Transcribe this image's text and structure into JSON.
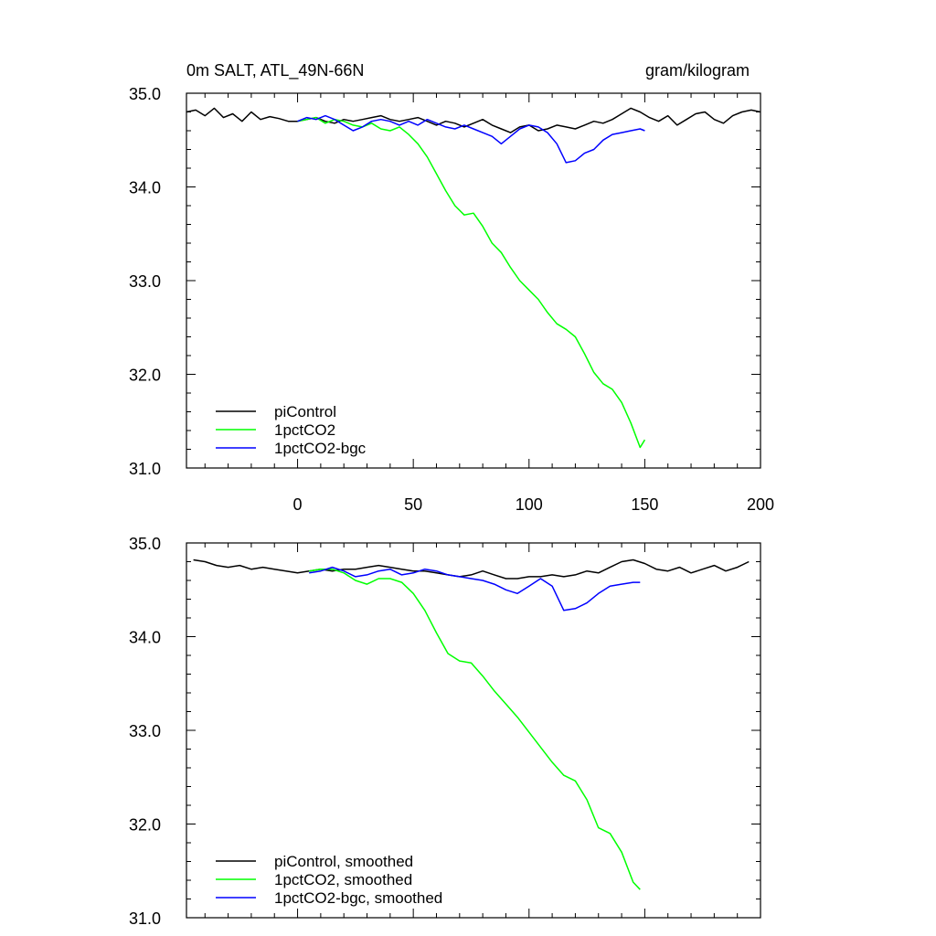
{
  "chart_data": [
    {
      "type": "line",
      "title_left": "0m SALT, ATL_49N-66N",
      "title_right": "gram/kilogram",
      "xlim": [
        -48,
        200
      ],
      "ylim": [
        31.0,
        35.0
      ],
      "x_ticks": [
        0,
        50,
        100,
        150,
        200
      ],
      "y_ticks": [
        "31.0",
        "32.0",
        "33.0",
        "34.0",
        "35.0"
      ],
      "y_tick_values": [
        31.0,
        32.0,
        33.0,
        34.0,
        35.0
      ],
      "x_tick_labels_visible": true,
      "grid": false,
      "legend_position": "bottom-left",
      "series": [
        {
          "name": "piControl",
          "color": "#000000",
          "x": [
            -48,
            -44,
            -40,
            -36,
            -32,
            -28,
            -24,
            -20,
            -16,
            -12,
            -8,
            -4,
            0,
            4,
            8,
            12,
            16,
            20,
            24,
            28,
            32,
            36,
            40,
            44,
            48,
            52,
            56,
            60,
            64,
            68,
            72,
            76,
            80,
            84,
            88,
            92,
            96,
            100,
            104,
            108,
            112,
            116,
            120,
            124,
            128,
            132,
            136,
            140,
            144,
            148,
            152,
            156,
            160,
            164,
            168,
            172,
            176,
            180,
            184,
            188,
            192,
            196,
            200
          ],
          "values": [
            34.8,
            34.82,
            34.76,
            34.84,
            34.74,
            34.78,
            34.7,
            34.8,
            34.72,
            34.75,
            34.73,
            34.7,
            34.7,
            34.72,
            34.74,
            34.7,
            34.68,
            34.72,
            34.7,
            34.72,
            34.74,
            34.76,
            34.72,
            34.7,
            34.72,
            34.74,
            34.7,
            34.66,
            34.7,
            34.68,
            34.64,
            34.68,
            34.72,
            34.66,
            34.62,
            34.58,
            34.64,
            34.66,
            34.6,
            34.62,
            34.66,
            34.64,
            34.62,
            34.66,
            34.7,
            34.68,
            34.72,
            34.78,
            34.84,
            34.8,
            34.74,
            34.7,
            34.76,
            34.66,
            34.72,
            34.78,
            34.8,
            34.72,
            34.68,
            34.76,
            34.8,
            34.82,
            34.8
          ]
        },
        {
          "name": "1pctCO2",
          "color": "#00ff00",
          "x": [
            0,
            4,
            8,
            12,
            16,
            20,
            24,
            28,
            32,
            36,
            40,
            44,
            48,
            52,
            56,
            60,
            64,
            68,
            72,
            76,
            80,
            84,
            88,
            92,
            96,
            100,
            104,
            108,
            112,
            116,
            120,
            124,
            128,
            132,
            136,
            140,
            144,
            148,
            150
          ],
          "values": [
            34.7,
            34.72,
            34.74,
            34.68,
            34.72,
            34.7,
            34.66,
            34.64,
            34.68,
            34.62,
            34.6,
            34.64,
            34.56,
            34.46,
            34.32,
            34.14,
            33.96,
            33.8,
            33.7,
            33.72,
            33.58,
            33.4,
            33.3,
            33.14,
            33.0,
            32.9,
            32.8,
            32.66,
            32.54,
            32.48,
            32.4,
            32.22,
            32.02,
            31.9,
            31.84,
            31.7,
            31.48,
            31.22,
            31.3
          ]
        },
        {
          "name": "1pctCO2-bgc",
          "color": "#0000ff",
          "x": [
            0,
            4,
            8,
            12,
            16,
            20,
            24,
            28,
            32,
            36,
            40,
            44,
            48,
            52,
            56,
            60,
            64,
            68,
            72,
            76,
            80,
            84,
            88,
            92,
            96,
            100,
            104,
            108,
            112,
            116,
            120,
            124,
            128,
            132,
            136,
            140,
            144,
            148,
            150
          ],
          "values": [
            34.7,
            34.74,
            34.72,
            34.76,
            34.72,
            34.66,
            34.6,
            34.64,
            34.7,
            34.72,
            34.7,
            34.66,
            34.7,
            34.66,
            34.72,
            34.68,
            34.64,
            34.62,
            34.66,
            34.62,
            34.58,
            34.54,
            34.46,
            34.54,
            34.62,
            34.66,
            34.64,
            34.58,
            34.46,
            34.26,
            34.28,
            34.36,
            34.4,
            34.5,
            34.56,
            34.58,
            34.6,
            34.62,
            34.6
          ]
        }
      ]
    },
    {
      "type": "line",
      "xlim": [
        -48,
        200
      ],
      "ylim": [
        31.0,
        35.0
      ],
      "x_ticks": [
        0,
        50,
        100,
        150,
        200
      ],
      "y_ticks": [
        "31.0",
        "32.0",
        "33.0",
        "34.0",
        "35.0"
      ],
      "y_tick_values": [
        31.0,
        32.0,
        33.0,
        34.0,
        35.0
      ],
      "x_tick_labels_visible": false,
      "grid": false,
      "legend_position": "bottom-left",
      "series": [
        {
          "name": "piControl, smoothed",
          "color": "#000000",
          "x": [
            -45,
            -40,
            -35,
            -30,
            -25,
            -20,
            -15,
            -10,
            -5,
            0,
            5,
            10,
            15,
            20,
            25,
            30,
            35,
            40,
            45,
            50,
            55,
            60,
            65,
            70,
            75,
            80,
            85,
            90,
            95,
            100,
            105,
            110,
            115,
            120,
            125,
            130,
            135,
            140,
            145,
            150,
            155,
            160,
            165,
            170,
            175,
            180,
            185,
            190,
            195
          ],
          "values": [
            34.82,
            34.8,
            34.76,
            34.74,
            34.76,
            34.72,
            34.74,
            34.72,
            34.7,
            34.68,
            34.7,
            34.72,
            34.7,
            34.72,
            34.72,
            34.74,
            34.76,
            34.74,
            34.72,
            34.7,
            34.7,
            34.68,
            34.66,
            34.64,
            34.66,
            34.7,
            34.66,
            34.62,
            34.62,
            34.64,
            34.64,
            34.66,
            34.64,
            34.66,
            34.7,
            34.68,
            34.74,
            34.8,
            34.82,
            34.78,
            34.72,
            34.7,
            34.74,
            34.68,
            34.72,
            34.76,
            34.7,
            34.74,
            34.8
          ]
        },
        {
          "name": "1pctCO2, smoothed",
          "color": "#00ff00",
          "x": [
            5,
            10,
            15,
            20,
            25,
            30,
            35,
            40,
            45,
            50,
            55,
            60,
            65,
            70,
            75,
            80,
            85,
            90,
            95,
            100,
            105,
            110,
            115,
            120,
            125,
            130,
            135,
            140,
            145,
            148
          ],
          "values": [
            34.7,
            34.72,
            34.72,
            34.68,
            34.6,
            34.56,
            34.62,
            34.62,
            34.58,
            34.46,
            34.28,
            34.04,
            33.82,
            33.74,
            33.72,
            33.58,
            33.42,
            33.28,
            33.14,
            32.98,
            32.82,
            32.66,
            32.52,
            32.46,
            32.26,
            31.96,
            31.9,
            31.7,
            31.38,
            31.3
          ]
        },
        {
          "name": "1pctCO2-bgc, smoothed",
          "color": "#0000ff",
          "x": [
            5,
            10,
            15,
            20,
            25,
            30,
            35,
            40,
            45,
            50,
            55,
            60,
            65,
            70,
            75,
            80,
            85,
            90,
            95,
            100,
            105,
            110,
            115,
            120,
            125,
            130,
            135,
            140,
            145,
            148
          ],
          "values": [
            34.68,
            34.7,
            34.74,
            34.7,
            34.64,
            34.66,
            34.7,
            34.72,
            34.66,
            34.68,
            34.72,
            34.7,
            34.66,
            34.64,
            34.62,
            34.6,
            34.56,
            34.5,
            34.46,
            34.54,
            34.62,
            34.54,
            34.28,
            34.3,
            34.36,
            34.46,
            34.54,
            34.56,
            34.58,
            34.58
          ]
        }
      ]
    }
  ]
}
